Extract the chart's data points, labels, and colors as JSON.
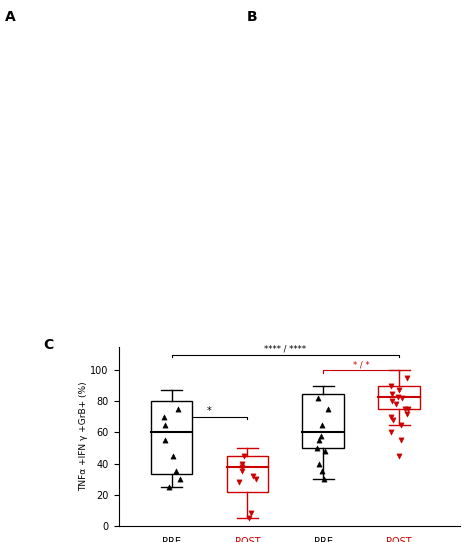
{
  "title_c": "C",
  "ylabel_c": "TNFα +IFN γ +GrB+ (%)",
  "ylim_c": [
    0,
    115
  ],
  "yticks_c": [
    0,
    20,
    40,
    60,
    80,
    100
  ],
  "colors": [
    "black",
    "#cc0000",
    "black",
    "#cc0000"
  ],
  "arm1_pre_box": {
    "q1": 33,
    "median": 60,
    "q3": 80,
    "whislo": 25,
    "whishi": 87
  },
  "arm1_pre_scatter": [
    25,
    30,
    35,
    45,
    55,
    65,
    70,
    75
  ],
  "arm1_post_box": {
    "q1": 22,
    "median": 38,
    "q3": 45,
    "whislo": 5,
    "whishi": 50
  },
  "arm1_post_scatter": [
    5,
    8,
    28,
    30,
    32,
    35,
    38,
    40,
    45
  ],
  "arm2_pre_box": {
    "q1": 50,
    "median": 60,
    "q3": 85,
    "whislo": 30,
    "whishi": 90
  },
  "arm2_pre_scatter": [
    30,
    35,
    40,
    48,
    50,
    55,
    58,
    65,
    75,
    82
  ],
  "arm2_post_box": {
    "q1": 75,
    "median": 83,
    "q3": 90,
    "whislo": 65,
    "whishi": 100
  },
  "arm2_post_scatter": [
    45,
    55,
    60,
    65,
    68,
    70,
    72,
    75,
    75,
    78,
    80,
    82,
    83,
    85,
    87,
    90,
    95
  ],
  "box_width": 0.55,
  "fig_bgcolor": "#ffffff"
}
